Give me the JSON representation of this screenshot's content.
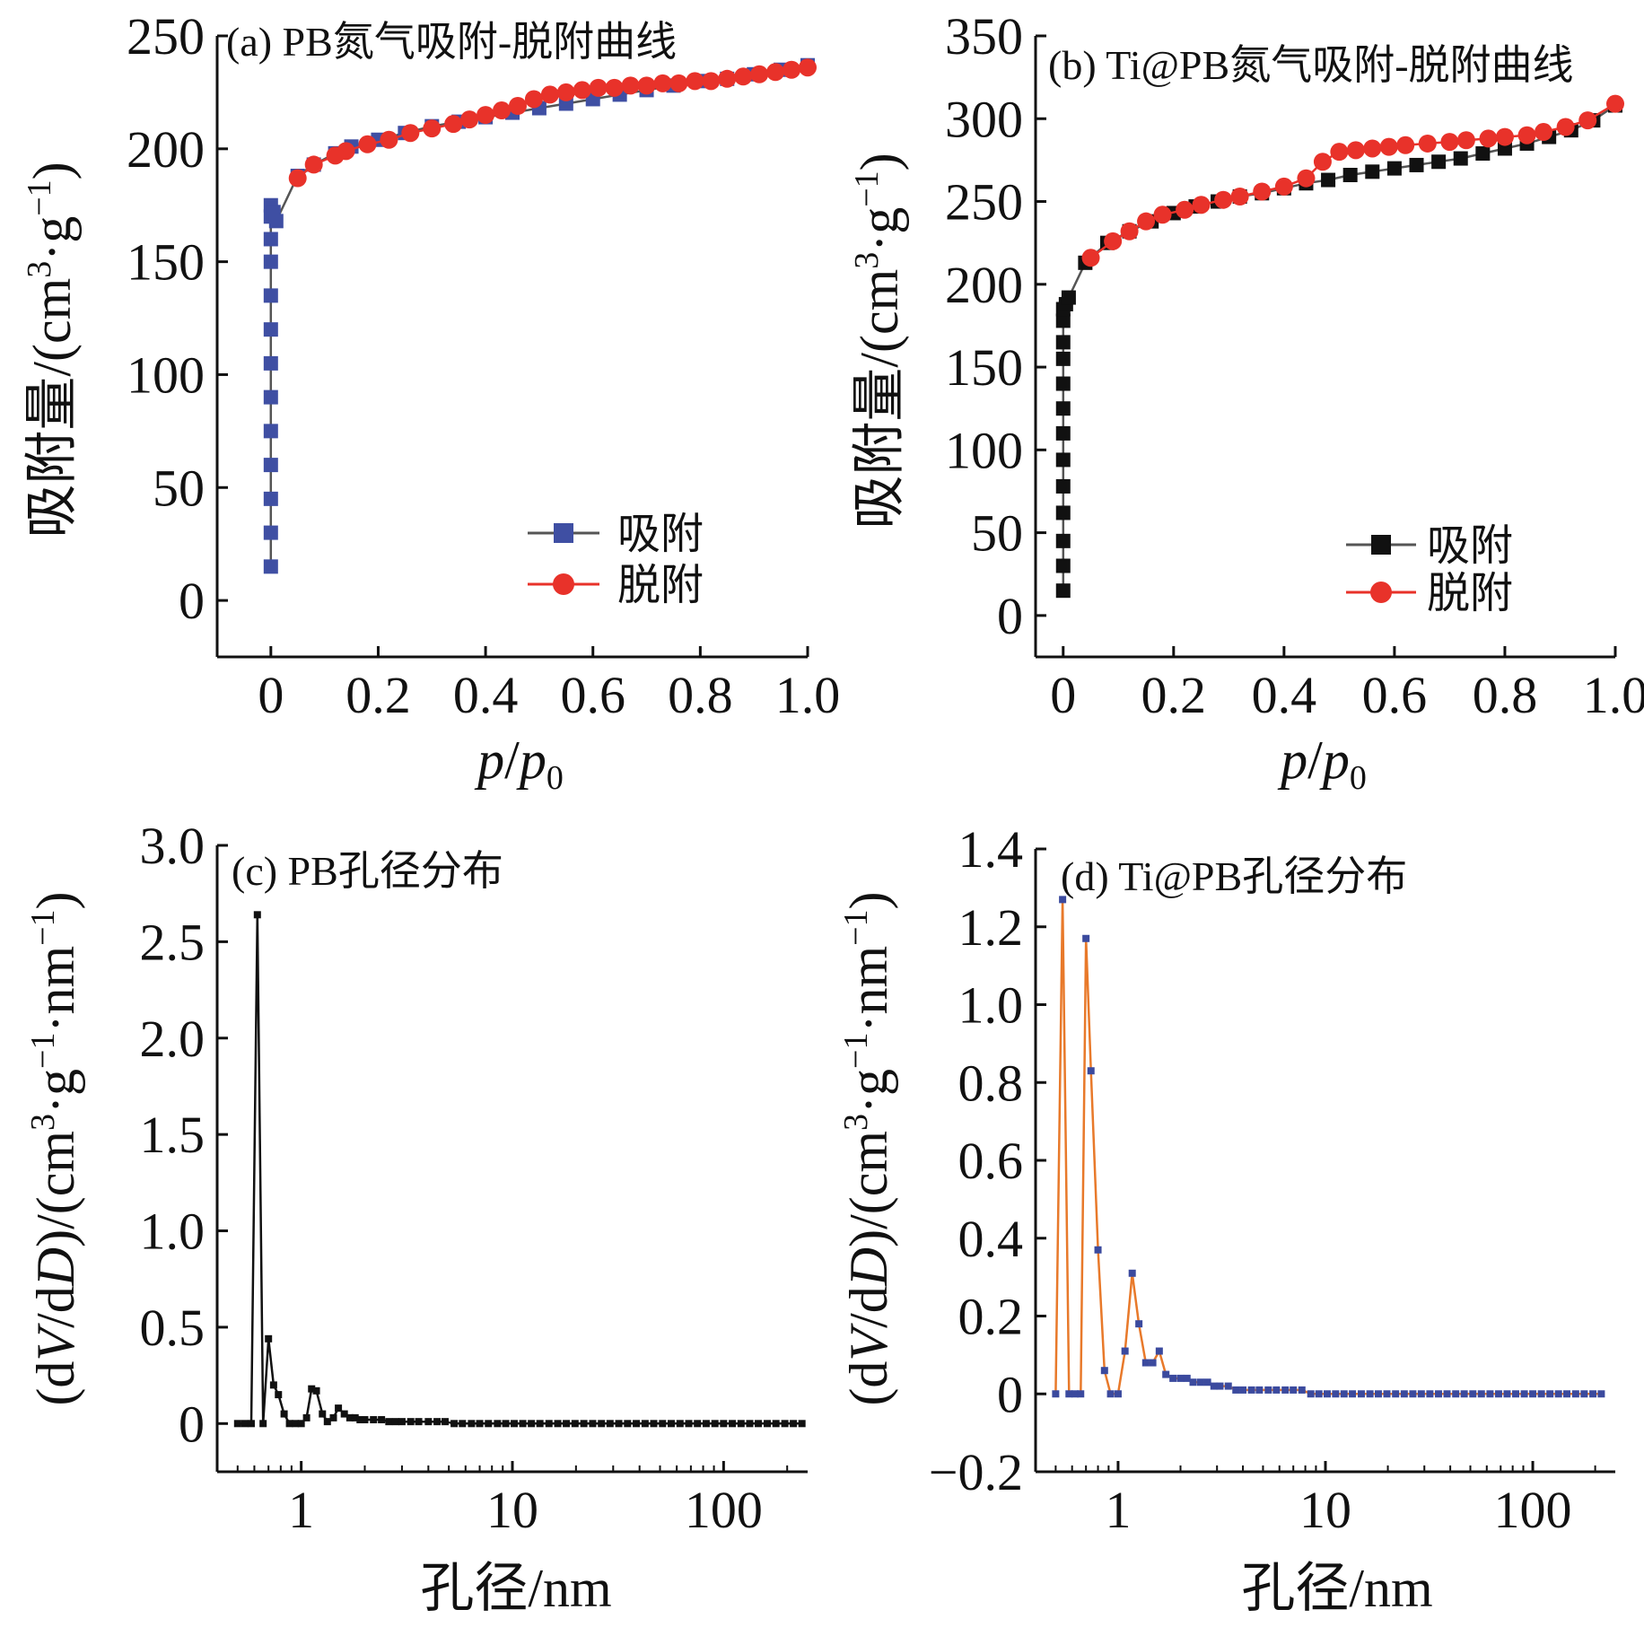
{
  "colors": {
    "adsorption_blue": "#3f4fa3",
    "adsorption_black": "#111111",
    "desorption_red": "#e8322a",
    "line_gray": "#555555",
    "psd_line_orange": "#e8792a",
    "psd_marker_blue": "#3b4a9e"
  },
  "chart_data": [
    {
      "panel": "a",
      "type": "line",
      "title": "(a)  PB氮气吸附-脱附曲线",
      "xlabel": "p/p0",
      "ylabel": "吸附量/(cm3·g-1)",
      "xlim": [
        -0.1,
        1.0
      ],
      "ylim": [
        -25,
        250
      ],
      "xticks": [
        "0",
        "0.2",
        "0.4",
        "0.6",
        "0.8",
        "1.0"
      ],
      "yticks": [
        "0",
        "50",
        "100",
        "150",
        "200",
        "250"
      ],
      "legend": {
        "placement": "lower-right",
        "entries": [
          "吸附",
          "脱附"
        ]
      },
      "series": [
        {
          "name": "吸附",
          "marker": "square",
          "x": [
            0.0,
            0.0,
            0.0,
            0.0,
            0.0,
            0.0,
            0.0,
            0.0,
            0.0,
            0.0,
            0.0,
            0.0,
            0.0,
            0.005,
            0.01,
            0.05,
            0.08,
            0.12,
            0.15,
            0.2,
            0.25,
            0.3,
            0.35,
            0.4,
            0.45,
            0.5,
            0.55,
            0.6,
            0.65,
            0.7,
            0.75,
            0.8,
            0.85,
            0.9,
            0.95,
            1.0
          ],
          "y": [
            15,
            30,
            45,
            60,
            75,
            90,
            105,
            120,
            135,
            150,
            160,
            170,
            175,
            172,
            168,
            188,
            193,
            198,
            201,
            204,
            207,
            210,
            212,
            214,
            216,
            218,
            220,
            222,
            224,
            226,
            228,
            230,
            231,
            233,
            235,
            237
          ]
        },
        {
          "name": "脱附",
          "marker": "circle",
          "x": [
            1.0,
            0.97,
            0.94,
            0.91,
            0.88,
            0.85,
            0.82,
            0.79,
            0.76,
            0.73,
            0.7,
            0.67,
            0.64,
            0.61,
            0.58,
            0.55,
            0.52,
            0.49,
            0.46,
            0.43,
            0.4,
            0.37,
            0.34,
            0.3,
            0.26,
            0.22,
            0.18,
            0.14,
            0.12,
            0.08,
            0.05
          ],
          "y": [
            236,
            235,
            234,
            233,
            232,
            231,
            230,
            230,
            229,
            229,
            228,
            228,
            227,
            227,
            226,
            225,
            224,
            222,
            219,
            217,
            215,
            213,
            211,
            209,
            207,
            204,
            202,
            199,
            197,
            193,
            187
          ]
        }
      ]
    },
    {
      "panel": "b",
      "type": "line",
      "title": "(b)  Ti@PB氮气吸附-脱附曲线",
      "xlabel": "p/p0",
      "ylabel": "吸附量/(cm3·g-1)",
      "xlim": [
        -0.05,
        1.0
      ],
      "ylim": [
        -25,
        350
      ],
      "xticks": [
        "0",
        "0.2",
        "0.4",
        "0.6",
        "0.8",
        "1.0"
      ],
      "yticks": [
        "0",
        "50",
        "100",
        "150",
        "200",
        "250",
        "300",
        "350"
      ],
      "legend": {
        "placement": "lower-right",
        "entries": [
          "吸附",
          "脱附"
        ]
      },
      "series": [
        {
          "name": "吸附",
          "marker": "square",
          "x": [
            0.0,
            0.0,
            0.0,
            0.0,
            0.0,
            0.0,
            0.0,
            0.0,
            0.0,
            0.0,
            0.0,
            0.0,
            0.0,
            0.005,
            0.01,
            0.04,
            0.08,
            0.12,
            0.16,
            0.2,
            0.24,
            0.28,
            0.32,
            0.36,
            0.4,
            0.44,
            0.48,
            0.52,
            0.56,
            0.6,
            0.64,
            0.68,
            0.72,
            0.76,
            0.8,
            0.84,
            0.88,
            0.92,
            0.96,
            1.0
          ],
          "y": [
            15,
            30,
            45,
            62,
            78,
            94,
            110,
            125,
            140,
            155,
            165,
            178,
            185,
            188,
            192,
            213,
            225,
            232,
            238,
            243,
            247,
            250,
            253,
            255,
            258,
            261,
            263,
            266,
            268,
            270,
            272,
            274,
            276,
            279,
            282,
            285,
            289,
            293,
            299,
            308
          ]
        },
        {
          "name": "脱附",
          "marker": "circle",
          "x": [
            1.0,
            0.95,
            0.91,
            0.87,
            0.84,
            0.8,
            0.77,
            0.73,
            0.7,
            0.66,
            0.62,
            0.59,
            0.56,
            0.53,
            0.5,
            0.47,
            0.44,
            0.4,
            0.36,
            0.32,
            0.29,
            0.25,
            0.22,
            0.18,
            0.15,
            0.12,
            0.09,
            0.05
          ],
          "y": [
            309,
            299,
            295,
            292,
            290,
            289,
            288,
            287,
            286,
            285,
            284,
            283,
            282,
            281,
            280,
            274,
            264,
            259,
            256,
            253,
            251,
            248,
            245,
            242,
            238,
            232,
            226,
            216
          ]
        }
      ]
    },
    {
      "panel": "c",
      "type": "line",
      "title": "(c)  PB孔径分布",
      "xlabel": "孔径/nm",
      "ylabel": "(dV/dD)/(cm3·g-1·nm-1)",
      "xscale": "log",
      "xlim": [
        0.4,
        250
      ],
      "ylim": [
        -0.25,
        3.0
      ],
      "xticks": [
        "1",
        "10",
        "100"
      ],
      "yticks": [
        "0",
        "0.5",
        "1.0",
        "1.5",
        "2.0",
        "2.5",
        "3.0"
      ],
      "series": [
        {
          "name": "",
          "marker": "square",
          "x": [
            0.5,
            0.54,
            0.58,
            0.62,
            0.66,
            0.7,
            0.74,
            0.78,
            0.83,
            0.88,
            0.94,
            1.0,
            1.06,
            1.12,
            1.18,
            1.26,
            1.33,
            1.42,
            1.5,
            1.6,
            1.7,
            1.8,
            1.9,
            2.0,
            2.2,
            2.4,
            2.6,
            2.8,
            3.0,
            3.3,
            3.6,
            4.0,
            4.4,
            4.8,
            5.3,
            5.8,
            6.4,
            7,
            7.7,
            8.5,
            9.3,
            10.2,
            11.2,
            12.3,
            13.5,
            14.9,
            16.4,
            18,
            19.8,
            21.8,
            24,
            26.4,
            29,
            31.9,
            35.1,
            38.6,
            42.5,
            46.7,
            51.4,
            56.5,
            62.2,
            68.4,
            75.2,
            82.7,
            91,
            100,
            110,
            121,
            133,
            146,
            161,
            177,
            195,
            214,
            235
          ],
          "y": [
            0,
            0,
            0,
            2.64,
            0,
            0.44,
            0.2,
            0.15,
            0.05,
            0,
            0,
            0,
            0.03,
            0.18,
            0.17,
            0.05,
            0.01,
            0.03,
            0.08,
            0.05,
            0.03,
            0.03,
            0.02,
            0.02,
            0.02,
            0.02,
            0.01,
            0.01,
            0.01,
            0.01,
            0.01,
            0.01,
            0.01,
            0.01,
            0,
            0,
            0,
            0,
            0,
            0,
            0,
            0,
            0,
            0,
            0,
            0,
            0,
            0,
            0,
            0,
            0,
            0,
            0,
            0,
            0,
            0,
            0,
            0,
            0,
            0,
            0,
            0,
            0,
            0,
            0,
            0,
            0,
            0,
            0,
            0,
            0,
            0,
            0,
            0,
            0
          ]
        }
      ]
    },
    {
      "panel": "d",
      "type": "line",
      "title": "(d)  Ti@PB孔径分布",
      "xlabel": "孔径/nm",
      "ylabel": "(dV/dD)/(cm3·g-1·nm-1)",
      "xscale": "log",
      "xlim": [
        0.4,
        250
      ],
      "ylim": [
        -0.2,
        1.4
      ],
      "xticks": [
        "1",
        "10",
        "100"
      ],
      "yticks": [
        "−0.2",
        "0",
        "0.2",
        "0.4",
        "0.6",
        "0.8",
        "1.0",
        "1.2",
        "1.4"
      ],
      "series": [
        {
          "name": "",
          "marker": "square",
          "x": [
            0.5,
            0.54,
            0.58,
            0.62,
            0.66,
            0.7,
            0.74,
            0.8,
            0.86,
            0.92,
            1.0,
            1.08,
            1.17,
            1.26,
            1.36,
            1.47,
            1.58,
            1.7,
            1.84,
            2.0,
            2.15,
            2.3,
            2.5,
            2.7,
            2.9,
            3.1,
            3.4,
            3.7,
            4.0,
            4.4,
            4.8,
            5.3,
            5.8,
            6.4,
            7,
            7.7,
            8.5,
            9.3,
            10.2,
            11.2,
            12.3,
            13.5,
            14.9,
            16.4,
            18,
            19.8,
            21.8,
            24,
            26.4,
            29,
            31.9,
            35.1,
            38.6,
            42.5,
            46.7,
            51.4,
            56.5,
            62.2,
            68.4,
            75.2,
            82.7,
            91,
            100,
            110,
            121,
            133,
            146,
            161,
            177,
            195,
            214
          ],
          "y": [
            0,
            1.27,
            0,
            0,
            0,
            1.17,
            0.83,
            0.37,
            0.06,
            0,
            0,
            0.11,
            0.31,
            0.18,
            0.08,
            0.08,
            0.11,
            0.05,
            0.04,
            0.04,
            0.04,
            0.03,
            0.03,
            0.03,
            0.02,
            0.02,
            0.02,
            0.01,
            0.01,
            0.01,
            0.01,
            0.01,
            0.01,
            0.01,
            0.01,
            0.01,
            0,
            0,
            0,
            0,
            0,
            0,
            0,
            0,
            0,
            0,
            0,
            0,
            0,
            0,
            0,
            0,
            0,
            0,
            0,
            0,
            0,
            0,
            0,
            0,
            0,
            0,
            0,
            0,
            0,
            0,
            0,
            0,
            0,
            0,
            0
          ]
        }
      ]
    }
  ]
}
